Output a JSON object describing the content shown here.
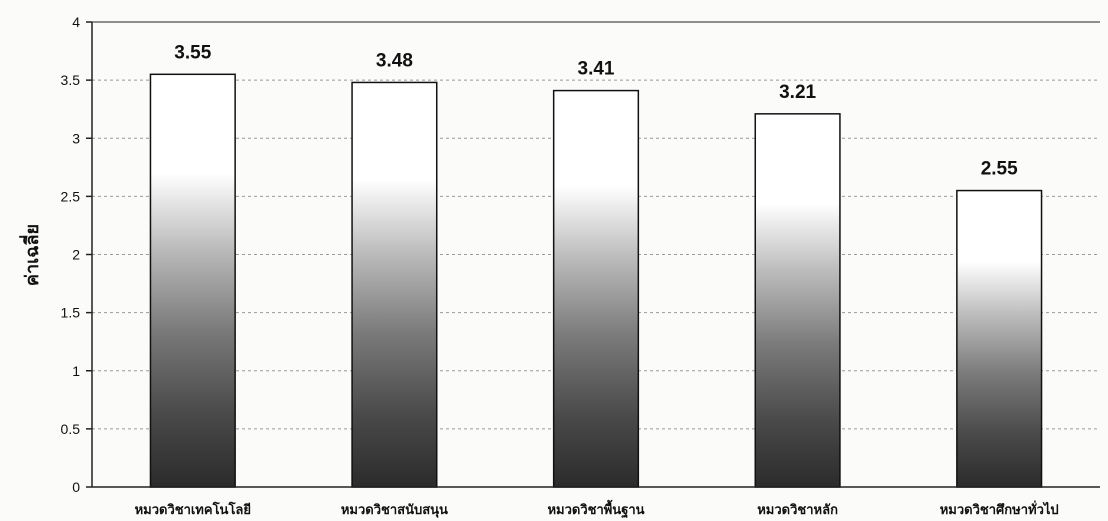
{
  "chart_data": {
    "type": "bar",
    "title": "",
    "xlabel": "",
    "ylabel": "ค่าเฉลี่ย",
    "ylim": [
      0,
      4
    ],
    "yticks": [
      0,
      0.5,
      1,
      1.5,
      2,
      2.5,
      3,
      3.5,
      4
    ],
    "ytick_labels": [
      "0",
      "0.5",
      "1",
      "1.5",
      "2",
      "2.5",
      "3",
      "3.5",
      "4"
    ],
    "categories": [
      "หมวดวิชาเทคโนโลยี",
      "หมวดวิชาสนับสนุน",
      "หมวดวิชาพื้นฐาน",
      "หมวดวิชาหลัก",
      "หมวดวิชาศึกษาทั่วไป"
    ],
    "values": [
      3.55,
      3.48,
      3.41,
      3.21,
      2.55
    ],
    "data_labels": [
      "3.55",
      "3.48",
      "3.41",
      "3.21",
      "2.55"
    ],
    "grid": "horizontal",
    "legend": "none",
    "colors": {
      "bar_top": "#ffffff",
      "bar_bottom": "#2b2b2b",
      "bar_stroke": "#111111",
      "grid": "#9a9a9a",
      "axis": "#222222",
      "background": "#fbfbf9"
    }
  }
}
